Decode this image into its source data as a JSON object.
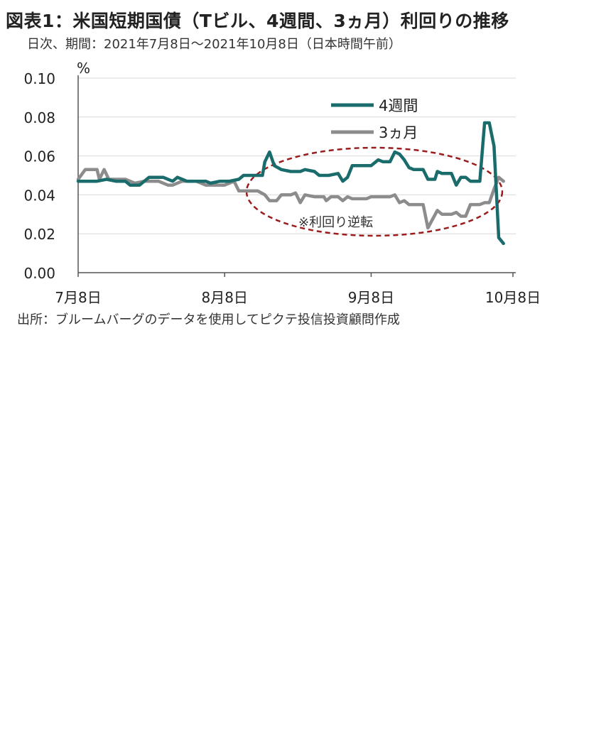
{
  "header": {
    "title": "図表1：米国短期国債（Tビル、4週間、3ヵ月）利回りの推移",
    "subtitle": "日次、期間：2021年7月8日～2021年10月8日（日本時間午前）"
  },
  "footer": {
    "source": "出所：ブルームバーグのデータを使用してピクテ投信投資顧問作成"
  },
  "chart_data": {
    "type": "line",
    "ylabel": "%",
    "ylim": [
      0,
      0.1
    ],
    "yticks": [
      "0.00",
      "0.02",
      "0.04",
      "0.06",
      "0.08",
      "0.10"
    ],
    "yvalues": [
      0,
      0.02,
      0.04,
      0.06,
      0.08,
      0.1
    ],
    "xticks": [
      "7月8日",
      "8月8日",
      "9月8日",
      "10月8日"
    ],
    "xtick_positions": [
      0,
      31,
      62,
      92
    ],
    "xlim": [
      0,
      92
    ],
    "grid": true,
    "legend_position": "top-right",
    "annotation": "※利回り逆転",
    "series": [
      {
        "name": "4週間",
        "color": "#1a6b6b",
        "points": [
          [
            0,
            0.047
          ],
          [
            2,
            0.047
          ],
          [
            4,
            0.047
          ],
          [
            6,
            0.048
          ],
          [
            8,
            0.047
          ],
          [
            10,
            0.047
          ],
          [
            11,
            0.045
          ],
          [
            13,
            0.045
          ],
          [
            15,
            0.049
          ],
          [
            18,
            0.049
          ],
          [
            20,
            0.047
          ],
          [
            21,
            0.049
          ],
          [
            23,
            0.047
          ],
          [
            25,
            0.047
          ],
          [
            27,
            0.047
          ],
          [
            28,
            0.046
          ],
          [
            30,
            0.047
          ],
          [
            32,
            0.047
          ],
          [
            34,
            0.048
          ],
          [
            35,
            0.05
          ],
          [
            37,
            0.05
          ],
          [
            39,
            0.05
          ],
          [
            39.5,
            0.057
          ],
          [
            40.5,
            0.062
          ],
          [
            41.5,
            0.055
          ],
          [
            43,
            0.053
          ],
          [
            45,
            0.052
          ],
          [
            47,
            0.052
          ],
          [
            48,
            0.053
          ],
          [
            50,
            0.052
          ],
          [
            51,
            0.05
          ],
          [
            53,
            0.05
          ],
          [
            55,
            0.051
          ],
          [
            56,
            0.047
          ],
          [
            57,
            0.049
          ],
          [
            58,
            0.055
          ],
          [
            61,
            0.055
          ],
          [
            62,
            0.055
          ],
          [
            63.5,
            0.058
          ],
          [
            64.5,
            0.057
          ],
          [
            66,
            0.057
          ],
          [
            67,
            0.062
          ],
          [
            68,
            0.061
          ],
          [
            69,
            0.058
          ],
          [
            70,
            0.054
          ],
          [
            71,
            0.053
          ],
          [
            73,
            0.053
          ],
          [
            74,
            0.048
          ],
          [
            75.5,
            0.048
          ],
          [
            76,
            0.052
          ],
          [
            77,
            0.051
          ],
          [
            79,
            0.051
          ],
          [
            80,
            0.045
          ],
          [
            81,
            0.049
          ],
          [
            82,
            0.049
          ],
          [
            83,
            0.047
          ],
          [
            85,
            0.047
          ],
          [
            86,
            0.077
          ],
          [
            87,
            0.077
          ],
          [
            88,
            0.065
          ],
          [
            89,
            0.018
          ],
          [
            90,
            0.015
          ]
        ]
      },
      {
        "name": "3ヵ月",
        "color": "#8c8c8c",
        "points": [
          [
            0,
            0.048
          ],
          [
            1.5,
            0.053
          ],
          [
            4,
            0.053
          ],
          [
            4.5,
            0.048
          ],
          [
            5.5,
            0.053
          ],
          [
            6.5,
            0.048
          ],
          [
            10,
            0.048
          ],
          [
            12,
            0.046
          ],
          [
            14,
            0.047
          ],
          [
            17,
            0.047
          ],
          [
            19,
            0.045
          ],
          [
            20,
            0.045
          ],
          [
            22,
            0.047
          ],
          [
            25,
            0.047
          ],
          [
            27,
            0.045
          ],
          [
            31,
            0.045
          ],
          [
            33,
            0.047
          ],
          [
            34,
            0.042
          ],
          [
            36,
            0.042
          ],
          [
            38,
            0.042
          ],
          [
            39.5,
            0.04
          ],
          [
            40.5,
            0.037
          ],
          [
            42,
            0.037
          ],
          [
            43,
            0.04
          ],
          [
            45,
            0.04
          ],
          [
            46,
            0.041
          ],
          [
            47,
            0.036
          ],
          [
            48,
            0.04
          ],
          [
            50,
            0.039
          ],
          [
            52,
            0.039
          ],
          [
            52.5,
            0.037
          ],
          [
            53.5,
            0.039
          ],
          [
            55,
            0.039
          ],
          [
            56,
            0.037
          ],
          [
            57,
            0.039
          ],
          [
            58,
            0.038
          ],
          [
            61,
            0.038
          ],
          [
            62,
            0.039
          ],
          [
            64,
            0.039
          ],
          [
            66,
            0.039
          ],
          [
            67,
            0.04
          ],
          [
            68,
            0.036
          ],
          [
            69,
            0.037
          ],
          [
            70,
            0.035
          ],
          [
            72,
            0.035
          ],
          [
            73,
            0.035
          ],
          [
            74,
            0.023
          ],
          [
            76,
            0.032
          ],
          [
            77,
            0.03
          ],
          [
            79,
            0.03
          ],
          [
            80,
            0.031
          ],
          [
            81,
            0.029
          ],
          [
            82,
            0.029
          ],
          [
            83,
            0.035
          ],
          [
            85,
            0.035
          ],
          [
            86,
            0.036
          ],
          [
            87,
            0.036
          ],
          [
            88,
            0.043
          ],
          [
            89,
            0.049
          ],
          [
            90,
            0.047
          ]
        ]
      }
    ]
  }
}
